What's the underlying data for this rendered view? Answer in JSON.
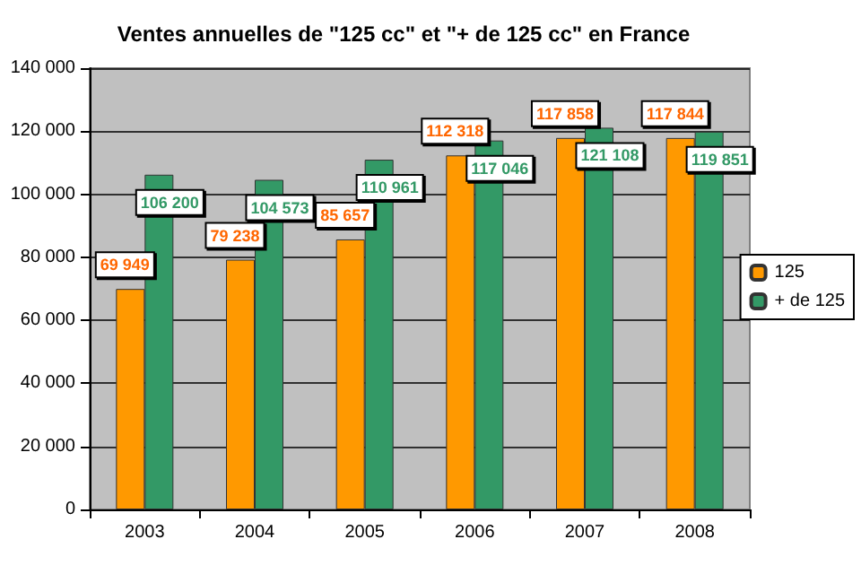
{
  "chart_data": {
    "type": "bar",
    "title": "Ventes annuelles de \"125 cc\" et \"+ de 125 cc\" en France",
    "categories": [
      "2003",
      "2004",
      "2005",
      "2006",
      "2007",
      "2008"
    ],
    "series": [
      {
        "name": "125",
        "color": "#ff9900",
        "values": [
          69949,
          79238,
          85657,
          112318,
          117858,
          117844
        ],
        "value_labels": [
          "69 949",
          "79 238",
          "85 657",
          "112 318",
          "117 858",
          "117 844"
        ]
      },
      {
        "name": "+ de 125",
        "color": "#339966",
        "values": [
          106200,
          104573,
          110961,
          117046,
          121108,
          119851
        ],
        "value_labels": [
          "106 200",
          "104 573",
          "110 961",
          "117 046",
          "121 108",
          "119 851"
        ]
      }
    ],
    "ylim": [
      0,
      140000
    ],
    "yticks": [
      {
        "value": 0,
        "label": "0"
      },
      {
        "value": 20000,
        "label": "20 000"
      },
      {
        "value": 40000,
        "label": "40 000"
      },
      {
        "value": 60000,
        "label": "60 000"
      },
      {
        "value": 80000,
        "label": "80 000"
      },
      {
        "value": 100000,
        "label": "100 000"
      },
      {
        "value": 120000,
        "label": "120 000"
      },
      {
        "value": 140000,
        "label": "140 000"
      }
    ],
    "grid": "y",
    "legend": "right"
  }
}
